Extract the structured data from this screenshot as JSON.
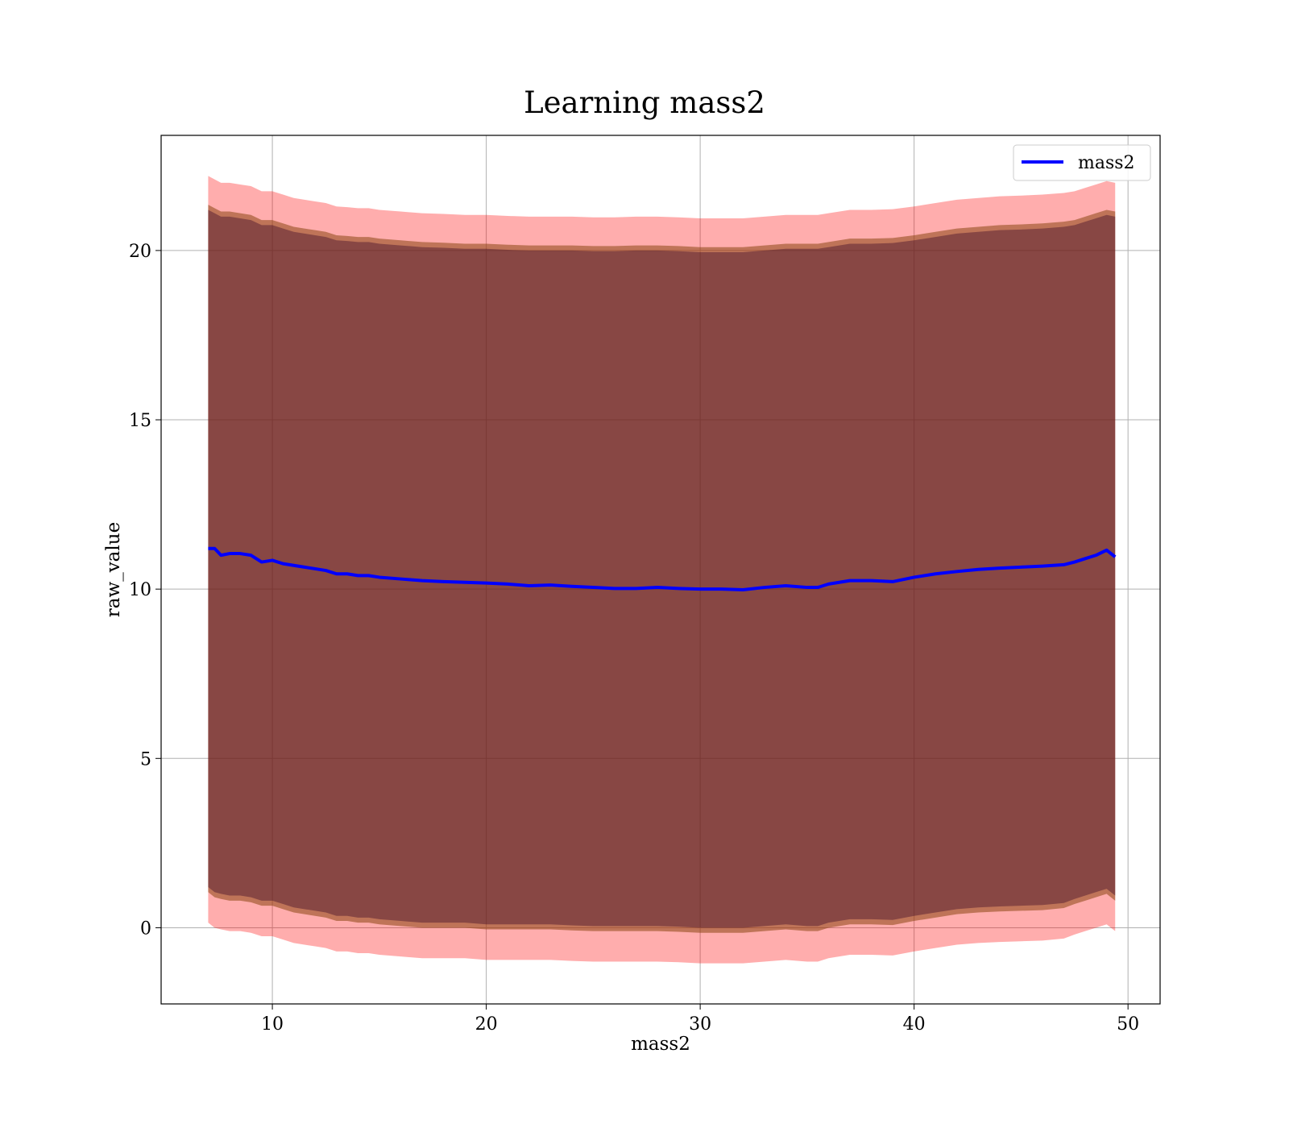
{
  "chart_data": {
    "type": "line",
    "title": "Learning mass2",
    "xlabel": "mass2",
    "ylabel": "raw_value",
    "xlim": [
      4.8,
      51.5
    ],
    "ylim": [
      -2.25,
      23.4
    ],
    "xticks": [
      10,
      20,
      30,
      40,
      50
    ],
    "yticks": [
      0,
      5,
      10,
      15,
      20
    ],
    "grid": true,
    "legend_position": "top-right",
    "colors": {
      "line": "#0000ff",
      "band": "#ff0000",
      "band_mid": "#8b4513",
      "band_inner": "#3c0a28"
    },
    "series": [
      {
        "name": "mass2",
        "x": [
          7.0,
          7.3,
          7.6,
          8.0,
          8.5,
          9.0,
          9.5,
          10.0,
          10.5,
          11.0,
          11.5,
          12.0,
          12.5,
          13.0,
          13.5,
          14.0,
          14.5,
          15.0,
          16.0,
          17.0,
          18.0,
          19.0,
          20.0,
          21.0,
          22.0,
          23.0,
          24.0,
          25.0,
          26.0,
          27.0,
          28.0,
          29.0,
          30.0,
          31.0,
          32.0,
          33.0,
          34.0,
          35.0,
          35.5,
          36.0,
          37.0,
          38.0,
          39.0,
          40.0,
          41.0,
          42.0,
          43.0,
          44.0,
          45.0,
          46.0,
          47.0,
          47.5,
          48.0,
          48.5,
          49.0,
          49.4
        ],
        "y": [
          11.2,
          11.2,
          11.0,
          11.05,
          11.05,
          11.0,
          10.8,
          10.85,
          10.75,
          10.7,
          10.65,
          10.6,
          10.55,
          10.45,
          10.45,
          10.4,
          10.4,
          10.35,
          10.3,
          10.25,
          10.22,
          10.2,
          10.18,
          10.15,
          10.1,
          10.12,
          10.08,
          10.05,
          10.02,
          10.02,
          10.05,
          10.02,
          10.0,
          10.0,
          9.98,
          10.05,
          10.1,
          10.05,
          10.05,
          10.15,
          10.25,
          10.25,
          10.22,
          10.35,
          10.45,
          10.52,
          10.58,
          10.62,
          10.65,
          10.68,
          10.72,
          10.8,
          10.9,
          11.0,
          11.15,
          10.95
        ]
      }
    ],
    "bands": [
      {
        "lower": [
          0.15,
          0.0,
          -0.05,
          -0.1,
          -0.1,
          -0.15,
          -0.25,
          -0.25,
          -0.35,
          -0.45,
          -0.5,
          -0.55,
          -0.6,
          -0.7,
          -0.7,
          -0.75,
          -0.75,
          -0.8,
          -0.85,
          -0.9,
          -0.9,
          -0.9,
          -0.95,
          -0.95,
          -0.95,
          -0.95,
          -0.98,
          -1.0,
          -1.0,
          -1.0,
          -1.0,
          -1.02,
          -1.05,
          -1.05,
          -1.05,
          -1.0,
          -0.95,
          -1.0,
          -1.0,
          -0.9,
          -0.8,
          -0.8,
          -0.82,
          -0.7,
          -0.6,
          -0.5,
          -0.45,
          -0.42,
          -0.4,
          -0.38,
          -0.32,
          -0.2,
          -0.1,
          0.0,
          0.1,
          -0.1
        ],
        "upper": [
          22.2,
          22.1,
          22.0,
          22.0,
          21.95,
          21.9,
          21.75,
          21.75,
          21.65,
          21.55,
          21.5,
          21.45,
          21.4,
          21.3,
          21.28,
          21.25,
          21.25,
          21.2,
          21.15,
          21.1,
          21.08,
          21.05,
          21.05,
          21.02,
          21.0,
          21.0,
          21.0,
          20.98,
          20.98,
          21.0,
          21.0,
          20.98,
          20.95,
          20.95,
          20.95,
          21.0,
          21.05,
          21.05,
          21.05,
          21.1,
          21.2,
          21.2,
          21.22,
          21.3,
          21.4,
          21.5,
          21.55,
          21.6,
          21.62,
          21.65,
          21.7,
          21.75,
          21.85,
          21.95,
          22.05,
          22.0
        ]
      },
      {
        "lower": [
          1.05,
          0.9,
          0.85,
          0.8,
          0.8,
          0.75,
          0.65,
          0.65,
          0.55,
          0.45,
          0.4,
          0.35,
          0.3,
          0.2,
          0.2,
          0.15,
          0.15,
          0.1,
          0.05,
          0.0,
          0.0,
          0.0,
          -0.05,
          -0.05,
          -0.05,
          -0.05,
          -0.08,
          -0.1,
          -0.1,
          -0.1,
          -0.1,
          -0.12,
          -0.15,
          -0.15,
          -0.15,
          -0.1,
          -0.05,
          -0.1,
          -0.1,
          0.0,
          0.1,
          0.1,
          0.08,
          0.2,
          0.3,
          0.4,
          0.45,
          0.48,
          0.5,
          0.52,
          0.58,
          0.7,
          0.8,
          0.9,
          1.0,
          0.8
        ],
        "upper": [
          21.35,
          21.25,
          21.15,
          21.15,
          21.1,
          21.05,
          20.9,
          20.9,
          20.8,
          20.7,
          20.65,
          20.6,
          20.55,
          20.45,
          20.43,
          20.4,
          20.4,
          20.35,
          20.3,
          20.25,
          20.23,
          20.2,
          20.2,
          20.17,
          20.15,
          20.15,
          20.15,
          20.13,
          20.13,
          20.15,
          20.15,
          20.13,
          20.1,
          20.1,
          20.1,
          20.15,
          20.2,
          20.2,
          20.2,
          20.25,
          20.35,
          20.35,
          20.37,
          20.45,
          20.55,
          20.65,
          20.7,
          20.75,
          20.77,
          20.8,
          20.85,
          20.9,
          21.0,
          21.1,
          21.2,
          21.15
        ]
      },
      {
        "lower": [
          1.2,
          1.05,
          1.0,
          0.95,
          0.95,
          0.9,
          0.8,
          0.8,
          0.7,
          0.6,
          0.55,
          0.5,
          0.45,
          0.35,
          0.35,
          0.3,
          0.3,
          0.25,
          0.2,
          0.15,
          0.15,
          0.15,
          0.1,
          0.1,
          0.1,
          0.1,
          0.07,
          0.05,
          0.05,
          0.05,
          0.05,
          0.03,
          0.0,
          0.0,
          0.0,
          0.05,
          0.1,
          0.05,
          0.05,
          0.15,
          0.25,
          0.25,
          0.23,
          0.35,
          0.45,
          0.55,
          0.6,
          0.63,
          0.65,
          0.67,
          0.73,
          0.85,
          0.95,
          1.05,
          1.15,
          0.95
        ],
        "upper": [
          21.2,
          21.1,
          21.0,
          21.0,
          20.95,
          20.9,
          20.75,
          20.75,
          20.65,
          20.55,
          20.5,
          20.45,
          20.4,
          20.3,
          20.28,
          20.25,
          20.25,
          20.2,
          20.15,
          20.1,
          20.08,
          20.05,
          20.05,
          20.02,
          20.0,
          20.0,
          20.0,
          19.98,
          19.98,
          20.0,
          20.0,
          19.98,
          19.95,
          19.95,
          19.95,
          20.0,
          20.05,
          20.05,
          20.05,
          20.1,
          20.2,
          20.2,
          20.22,
          20.3,
          20.4,
          20.5,
          20.55,
          20.6,
          20.62,
          20.65,
          20.7,
          20.75,
          20.85,
          20.95,
          21.05,
          21.0
        ]
      }
    ]
  }
}
